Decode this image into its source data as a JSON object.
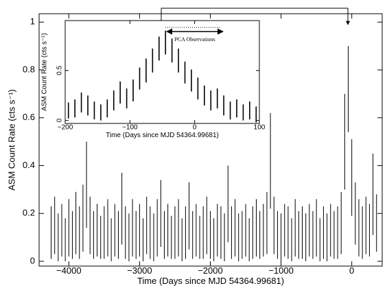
{
  "chart_data": [
    {
      "type": "errorbar",
      "color": "#000000",
      "xlabel": "Time (Days since MJD 54364.99681)",
      "ylabel": "ASM Count Rate (cts s⁻¹)",
      "xlim": [
        -4420,
        430
      ],
      "ylim": [
        -0.02,
        1.035
      ],
      "xticks": [
        {
          "value": -4000,
          "label": "−4000"
        },
        {
          "value": -3000,
          "label": "−3000"
        },
        {
          "value": -2000,
          "label": "−2000"
        },
        {
          "value": -1000,
          "label": "−1000"
        },
        0
      ],
      "yticks": [
        0,
        0.2,
        0.4,
        0.6,
        0.8,
        1
      ],
      "x": [
        -4250,
        -4200,
        -4150,
        -4100,
        -4050,
        -4000,
        -3950,
        -3900,
        -3850,
        -3800,
        -3750,
        -3700,
        -3650,
        -3600,
        -3550,
        -3500,
        -3450,
        -3400,
        -3350,
        -3300,
        -3250,
        -3200,
        -3150,
        -3100,
        -3050,
        -3000,
        -2950,
        -2900,
        -2850,
        -2800,
        -2750,
        -2700,
        -2650,
        -2600,
        -2550,
        -2500,
        -2450,
        -2400,
        -2350,
        -2300,
        -2250,
        -2200,
        -2150,
        -2100,
        -2050,
        -2000,
        -1950,
        -1900,
        -1850,
        -1800,
        -1750,
        -1700,
        -1650,
        -1600,
        -1550,
        -1500,
        -1450,
        -1400,
        -1350,
        -1300,
        -1250,
        -1200,
        -1150,
        -1100,
        -1050,
        -1000,
        -950,
        -900,
        -850,
        -800,
        -750,
        -700,
        -650,
        -600,
        -550,
        -500,
        -450,
        -400,
        -350,
        -300,
        -250,
        -200,
        -150,
        -100,
        -50,
        0,
        50,
        100,
        150,
        200,
        250,
        300,
        350
      ],
      "values": [
        0.12,
        0.15,
        0.1,
        0.13,
        0.09,
        0.14,
        0.11,
        0.16,
        0.12,
        0.18,
        0.32,
        0.15,
        0.11,
        0.13,
        0.1,
        0.12,
        0.14,
        0.09,
        0.13,
        0.11,
        0.22,
        0.12,
        0.1,
        0.14,
        0.11,
        0.13,
        0.09,
        0.15,
        0.12,
        0.1,
        0.14,
        0.2,
        0.11,
        0.13,
        0.1,
        0.12,
        0.14,
        0.09,
        0.12,
        0.19,
        0.11,
        0.13,
        0.1,
        0.12,
        0.15,
        0.11,
        0.09,
        0.13,
        0.12,
        0.1,
        0.24,
        0.12,
        0.14,
        0.1,
        0.11,
        0.13,
        0.09,
        0.12,
        0.14,
        0.11,
        0.13,
        0.16,
        0.42,
        0.15,
        0.11,
        0.1,
        0.13,
        0.12,
        0.09,
        0.14,
        0.11,
        0.12,
        0.1,
        0.13,
        0.11,
        0.14,
        0.09,
        0.12,
        0.1,
        0.13,
        0.11,
        0.12,
        0.16,
        0.5,
        0.72,
        0.35,
        0.2,
        0.14,
        0.12,
        0.15,
        0.13,
        0.28,
        0.16
      ],
      "errors": [
        0.11,
        0.12,
        0.1,
        0.11,
        0.09,
        0.12,
        0.1,
        0.13,
        0.11,
        0.14,
        0.18,
        0.12,
        0.1,
        0.11,
        0.09,
        0.11,
        0.12,
        0.09,
        0.11,
        0.1,
        0.15,
        0.11,
        0.1,
        0.12,
        0.1,
        0.11,
        0.09,
        0.12,
        0.11,
        0.1,
        0.12,
        0.14,
        0.1,
        0.11,
        0.09,
        0.11,
        0.12,
        0.09,
        0.11,
        0.14,
        0.1,
        0.11,
        0.09,
        0.11,
        0.12,
        0.1,
        0.09,
        0.11,
        0.11,
        0.1,
        0.16,
        0.11,
        0.12,
        0.1,
        0.1,
        0.11,
        0.09,
        0.11,
        0.12,
        0.1,
        0.11,
        0.13,
        0.2,
        0.12,
        0.1,
        0.1,
        0.11,
        0.11,
        0.09,
        0.12,
        0.1,
        0.11,
        0.1,
        0.11,
        0.1,
        0.12,
        0.09,
        0.11,
        0.1,
        0.11,
        0.1,
        0.11,
        0.13,
        0.2,
        0.18,
        0.16,
        0.13,
        0.12,
        0.11,
        0.12,
        0.11,
        0.17,
        0.12
      ]
    },
    {
      "type": "errorbar",
      "color": "#000000",
      "xlabel": "Time (Days since MJD 54364.99681)",
      "ylabel": "ASM Count Rate (cts s⁻¹)",
      "annotation": "PCA Observations",
      "xlim": [
        -200,
        100
      ],
      "ylim": [
        -0.03,
        1.0
      ],
      "xticks": [
        {
          "value": -200,
          "label": "−200"
        },
        {
          "value": -100,
          "label": "−100"
        },
        0,
        100
      ],
      "yticks": [
        0,
        0.5
      ],
      "x": [
        -195,
        -185,
        -175,
        -165,
        -155,
        -145,
        -135,
        -125,
        -115,
        -105,
        -95,
        -85,
        -75,
        -65,
        -55,
        -45,
        -35,
        -25,
        -15,
        -5,
        5,
        15,
        25,
        35,
        45,
        55,
        65,
        75,
        85,
        95
      ],
      "values": [
        0.1,
        0.12,
        0.18,
        0.15,
        0.1,
        0.08,
        0.12,
        0.2,
        0.28,
        0.22,
        0.3,
        0.42,
        0.5,
        0.6,
        0.72,
        0.78,
        0.7,
        0.6,
        0.48,
        0.4,
        0.32,
        0.25,
        0.2,
        0.22,
        0.15,
        0.1,
        0.12,
        0.08,
        0.1,
        0.06
      ],
      "errors": [
        0.08,
        0.09,
        0.1,
        0.1,
        0.09,
        0.08,
        0.09,
        0.1,
        0.11,
        0.1,
        0.11,
        0.11,
        0.12,
        0.12,
        0.12,
        0.12,
        0.12,
        0.12,
        0.11,
        0.11,
        0.11,
        0.1,
        0.1,
        0.1,
        0.1,
        0.09,
        0.09,
        0.08,
        0.09,
        0.08
      ]
    }
  ]
}
